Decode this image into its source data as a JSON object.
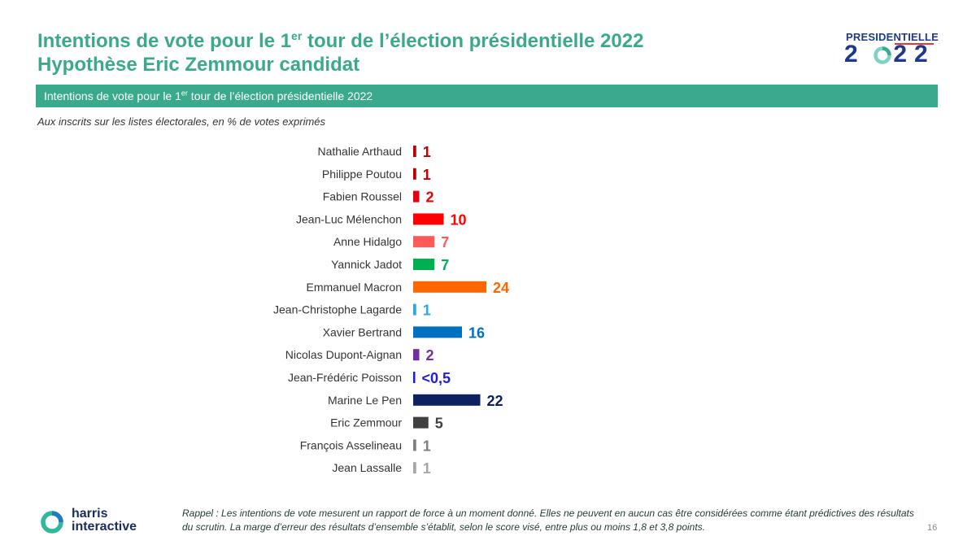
{
  "header": {
    "title_line1_a": "Intentions de vote pour le 1",
    "title_line1_sup": "er",
    "title_line1_b": " tour de l’élection présidentielle 2022",
    "title_line2": "Hypothèse Eric Zemmour candidat"
  },
  "logo": {
    "top": "PRESIDENTIELLE",
    "year_a": "2",
    "year_b": "22"
  },
  "band": {
    "text_a": "Intentions  de vote pour le 1",
    "text_sup": "er",
    "text_b": " tour de l’élection présidentielle 2022"
  },
  "subtitle": "Aux inscrits sur les listes électorales, en % de votes exprimés",
  "chart_data": {
    "type": "bar",
    "orientation": "horizontal",
    "title": "",
    "xlabel": "",
    "ylabel": "",
    "grid": false,
    "categories": [
      "Nathalie Arthaud",
      "Philippe Poutou",
      "Fabien Roussel",
      "Jean-Luc Mélenchon",
      "Anne Hidalgo",
      "Yannick Jadot",
      "Emmanuel Macron",
      "Jean-Christophe Lagarde",
      "Xavier Bertrand",
      "Nicolas Dupont-Aignan",
      "Jean-Frédéric Poisson",
      "Marine Le Pen",
      "Eric Zemmour",
      "François Asselineau",
      "Jean Lassalle"
    ],
    "values": [
      1,
      1,
      2,
      10,
      7,
      7,
      24,
      1,
      16,
      2,
      0.5,
      22,
      5,
      1,
      1
    ],
    "labels": [
      "1",
      "1",
      "2",
      "10",
      "7",
      "7",
      "24",
      "1",
      "16",
      "2",
      "<0,5",
      "22",
      "5",
      "1",
      "1"
    ],
    "colors": [
      "#c00000",
      "#c00000",
      "#e8000b",
      "#ff0000",
      "#ff5a5a",
      "#00b050",
      "#ff6600",
      "#29abe2",
      "#0070c0",
      "#7030a0",
      "#1f1fd6",
      "#0d2160",
      "#404040",
      "#7f7f7f",
      "#a6a6a6"
    ]
  },
  "footer": {
    "logo_line1": "harris",
    "logo_line2": "interactive",
    "note": "Rappel : Les intentions de vote mesurent un rapport de force à un moment donné. Elles ne peuvent en aucun cas être considérées comme étant prédictives des résultats du scrutin. La marge d’erreur des résultats d’ensemble s’établit, selon le score visé, entre plus ou moins 1,8 et 3,8 points.",
    "page_number": "16"
  }
}
